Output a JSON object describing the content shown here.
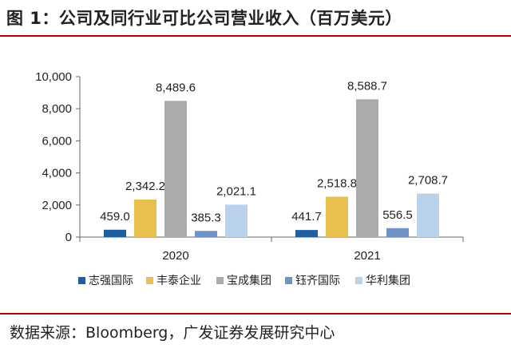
{
  "header": {
    "title": "图 1：公司及同行业可比公司营业收入（百万美元）"
  },
  "footer": {
    "source": "数据来源：Bloomberg，广发证券发展研究中心"
  },
  "colors": {
    "rule": "#b00000",
    "series": [
      "#1f5f9e",
      "#e8c04f",
      "#ababab",
      "#6f93c6",
      "#b9d1ea"
    ]
  },
  "chart_data": {
    "type": "bar",
    "categories": [
      "2020",
      "2021"
    ],
    "series": [
      {
        "name": "志强国际",
        "values": [
          459.0,
          441.7
        ],
        "labels": [
          "459.0",
          "441.7"
        ]
      },
      {
        "name": "丰泰企业",
        "values": [
          2342.2,
          2518.8
        ],
        "labels": [
          "2,342.2",
          "2,518.8"
        ]
      },
      {
        "name": "宝成集团",
        "values": [
          8489.6,
          8588.7
        ],
        "labels": [
          "8,489.6",
          "8,588.7"
        ]
      },
      {
        "name": "钰齐国际",
        "values": [
          385.3,
          556.5
        ],
        "labels": [
          "385.3",
          "556.5"
        ]
      },
      {
        "name": "华利集团",
        "values": [
          2021.1,
          2708.7
        ],
        "labels": [
          "2,021.1",
          "2,708.7"
        ]
      }
    ],
    "ylim": [
      0,
      10000
    ],
    "yticks": [
      0,
      2000,
      4000,
      6000,
      8000,
      10000
    ],
    "ytick_labels": [
      "0",
      "2,000",
      "4,000",
      "6,000",
      "8,000",
      "10,000"
    ],
    "grid": false,
    "legend": "bottom"
  }
}
